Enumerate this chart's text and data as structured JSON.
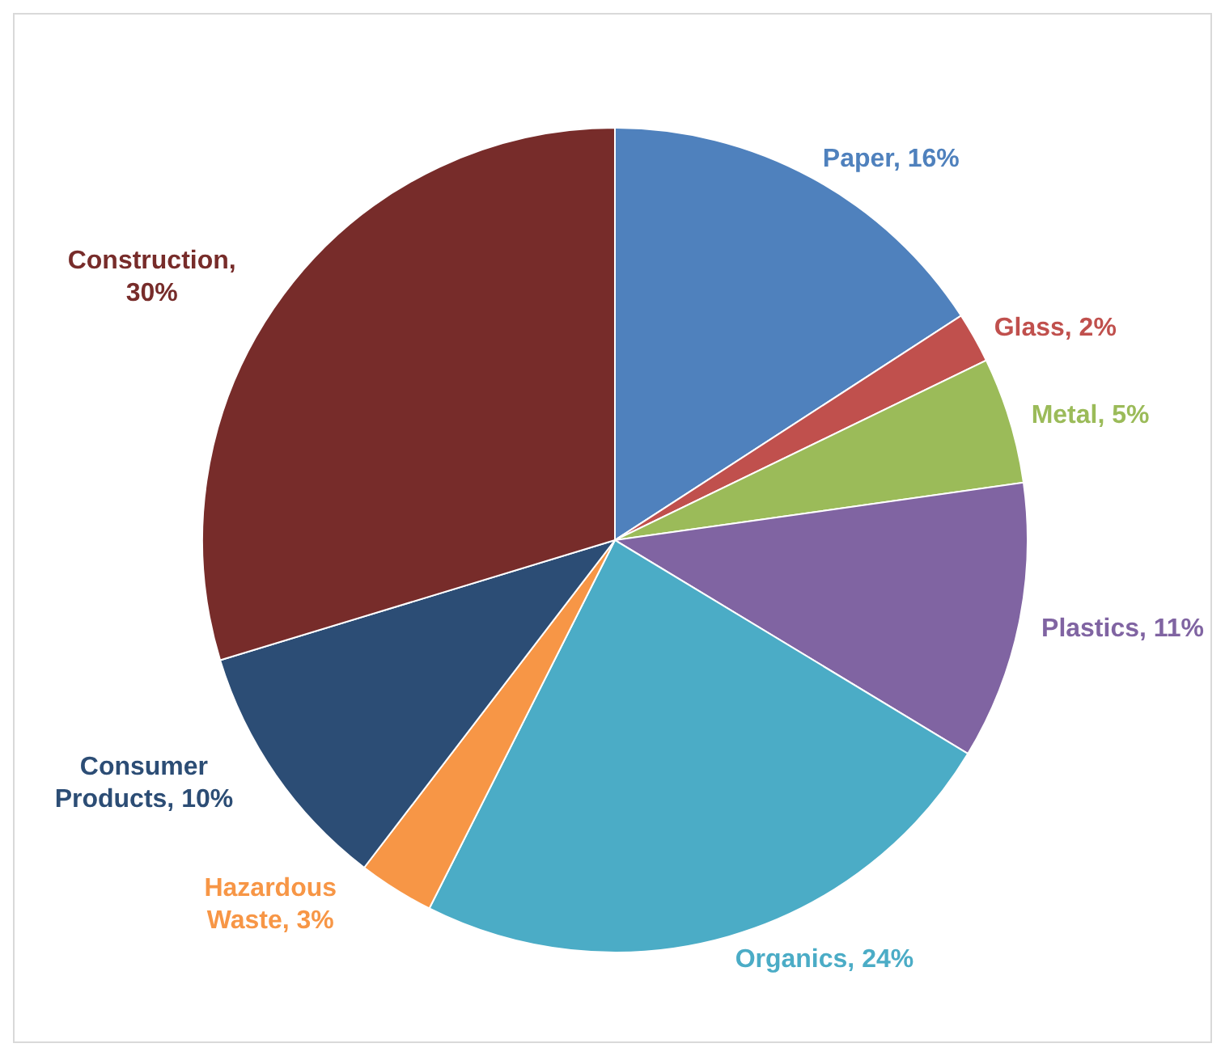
{
  "chart_data": {
    "type": "pie",
    "categories": [
      "Paper, 16%",
      "Glass, 2%",
      "Metal, 5%",
      "Plastics, 11%",
      "Organics, 24%",
      "Hazardous Waste, 3%",
      "Consumer Products, 10%",
      "Construction, 30%"
    ],
    "values": [
      16,
      2,
      5,
      11,
      24,
      3,
      10,
      30
    ],
    "colors": [
      "#4f81bd",
      "#c0504d",
      "#9bbb59",
      "#8064a2",
      "#4bacc6",
      "#f79646",
      "#2c4d75",
      "#772c2a"
    ]
  }
}
